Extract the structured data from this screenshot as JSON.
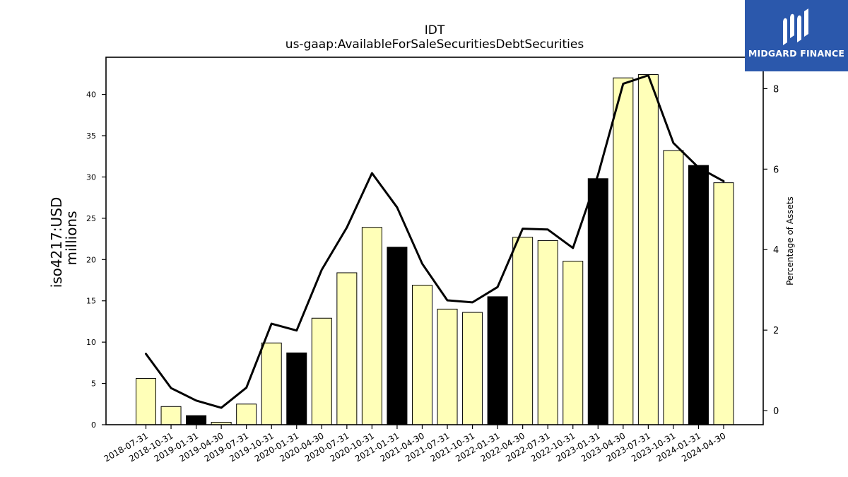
{
  "chart_data": {
    "type": "bar",
    "title": "IDT",
    "subtitle": "us-gaap:AvailableForSaleSecuritiesDebtSecurities",
    "ylabel_left": [
      "iso4217:USD",
      "millions"
    ],
    "ylabel_right": "Percentage of Assets",
    "categories": [
      "2018-07-31",
      "2018-10-31",
      "2019-01-31",
      "2019-04-30",
      "2019-07-31",
      "2019-10-31",
      "2020-01-31",
      "2020-04-30",
      "2020-07-31",
      "2020-10-31",
      "2021-01-31",
      "2021-04-30",
      "2021-07-31",
      "2021-10-31",
      "2022-01-31",
      "2022-04-30",
      "2022-07-31",
      "2022-10-31",
      "2023-01-31",
      "2023-04-30",
      "2023-07-31",
      "2023-10-31",
      "2024-01-31",
      "2024-04-30"
    ],
    "ylim_left": [
      0,
      44.5
    ],
    "ylim_right": [
      -0.35,
      8.78
    ],
    "yticks_left": [
      0,
      5,
      10,
      15,
      20,
      25,
      30,
      35,
      40
    ],
    "yticks_right": [
      0,
      2,
      4,
      6,
      8
    ],
    "series": [
      {
        "kind": "bar",
        "axis": "left",
        "values": [
          5.6,
          2.2,
          1.1,
          0.3,
          2.5,
          9.9,
          8.7,
          12.9,
          18.4,
          23.9,
          21.5,
          16.9,
          14.0,
          13.6,
          15.5,
          22.7,
          22.3,
          19.8,
          29.8,
          42.0,
          42.4,
          33.2,
          31.4,
          29.3
        ],
        "highlight": [
          false,
          false,
          true,
          false,
          false,
          false,
          true,
          false,
          false,
          false,
          true,
          false,
          false,
          false,
          true,
          false,
          false,
          false,
          true,
          false,
          false,
          false,
          true,
          false
        ]
      },
      {
        "kind": "line",
        "axis": "right",
        "values": [
          1.41,
          0.56,
          0.25,
          0.07,
          0.57,
          2.16,
          1.99,
          3.5,
          4.55,
          5.9,
          5.05,
          3.65,
          2.74,
          2.69,
          3.07,
          4.52,
          4.5,
          4.04,
          5.86,
          8.12,
          8.33,
          6.65,
          6.04,
          5.7
        ]
      }
    ],
    "colors": {
      "bar": "#ffffb8",
      "bar_highlight": "#000000",
      "line": "#000000"
    },
    "grid": false,
    "legend": "none"
  },
  "logo": {
    "text": "MIDGARD FINANCE",
    "background": "#2b58ac"
  }
}
